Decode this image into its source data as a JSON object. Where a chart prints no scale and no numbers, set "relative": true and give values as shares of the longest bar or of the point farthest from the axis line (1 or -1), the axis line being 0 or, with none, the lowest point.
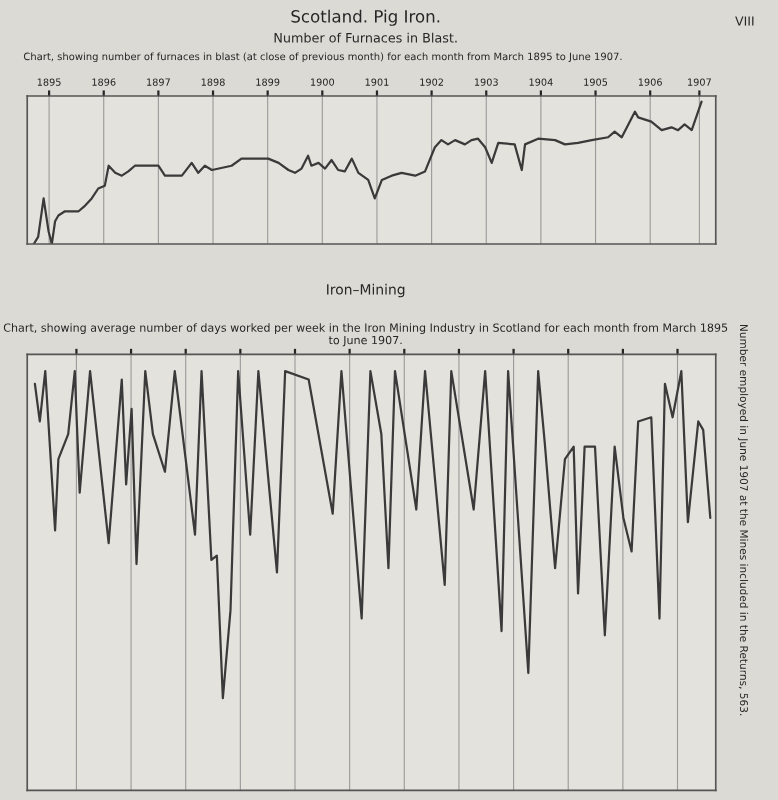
{
  "chart_data": [
    {
      "type": "line",
      "title": "Scotland. Pig Iron.",
      "subtitle": "Number of Furnaces in Blast.",
      "annotations": [
        "VIII",
        "Chart, showing number of furnaces in blast (at close of previous month) for each month from March 1895 to June 1907."
      ],
      "relative": true,
      "grid": "x",
      "xlim": [
        1895.1,
        1907.7
      ],
      "xticks": [
        {
          "value": 1895.5,
          "label": "1895"
        },
        {
          "value": 1896.5,
          "label": "1896"
        },
        {
          "value": 1897.5,
          "label": "1897"
        },
        {
          "value": 1898.5,
          "label": "1898"
        },
        {
          "value": 1899.5,
          "label": "1899"
        },
        {
          "value": 1900.5,
          "label": "1900"
        },
        {
          "value": 1901.5,
          "label": "1901"
        },
        {
          "value": 1902.5,
          "label": "1902"
        },
        {
          "value": 1903.5,
          "label": "1903"
        },
        {
          "value": 1904.5,
          "label": "1904"
        },
        {
          "value": 1905.5,
          "label": "1905"
        },
        {
          "value": 1906.5,
          "label": "1906"
        },
        {
          "value": 1907.4,
          "label": "1907"
        }
      ],
      "tick_labels": "x",
      "series": [
        {
          "color": "#3a3a3a",
          "x": [
            1895.22,
            1895.3,
            1895.4,
            1895.49,
            1895.55,
            1895.61,
            1895.67,
            1895.79,
            1896.04,
            1896.16,
            1896.28,
            1896.4,
            1896.52,
            1896.59,
            1896.71,
            1896.83,
            1896.95,
            1897.07,
            1897.5,
            1897.62,
            1897.93,
            1898.11,
            1898.23,
            1898.35,
            1898.48,
            1898.84,
            1899.02,
            1899.51,
            1899.7,
            1899.88,
            1900.0,
            1900.12,
            1900.24,
            1900.3,
            1900.43,
            1900.55,
            1900.67,
            1900.79,
            1900.91,
            1901.04,
            1901.16,
            1901.34,
            1901.46,
            1901.59,
            1901.77,
            1901.95,
            1902.2,
            1902.38,
            1902.56,
            1902.68,
            1902.8,
            1902.93,
            1903.11,
            1903.23,
            1903.35,
            1903.48,
            1903.6,
            1903.72,
            1904.02,
            1904.15,
            1904.21,
            1904.45,
            1904.76,
            1904.94,
            1905.18,
            1905.43,
            1905.73,
            1905.85,
            1905.98,
            1906.1,
            1906.22,
            1906.28,
            1906.52,
            1906.71,
            1906.89,
            1907.01,
            1907.13,
            1907.26,
            1907.44
          ],
          "values": [
            0,
            0.05,
            0.32,
            0.09,
            0,
            0.16,
            0.2,
            0.23,
            0.23,
            0.27,
            0.32,
            0.39,
            0.41,
            0.55,
            0.5,
            0.48,
            0.51,
            0.55,
            0.55,
            0.48,
            0.48,
            0.57,
            0.5,
            0.55,
            0.52,
            0.55,
            0.6,
            0.6,
            0.57,
            0.52,
            0.5,
            0.53,
            0.62,
            0.55,
            0.57,
            0.53,
            0.59,
            0.52,
            0.51,
            0.6,
            0.5,
            0.45,
            0.32,
            0.45,
            0.48,
            0.5,
            0.48,
            0.51,
            0.68,
            0.73,
            0.7,
            0.73,
            0.7,
            0.73,
            0.74,
            0.68,
            0.57,
            0.71,
            0.7,
            0.52,
            0.7,
            0.74,
            0.73,
            0.7,
            0.71,
            0.73,
            0.75,
            0.79,
            0.75,
            0.84,
            0.93,
            0.89,
            0.86,
            0.8,
            0.82,
            0.8,
            0.84,
            0.8,
            1
          ]
        }
      ]
    },
    {
      "type": "line",
      "title": "Iron–Mining",
      "subtitle": "Chart, showing average number of days worked per week in the Iron Mining Industry in Scotland for each month from March 1895 to June 1907.",
      "annotations": [
        "Number employed in June 1907 at the Mines included in the Returns, 563."
      ],
      "relative": true,
      "grid": "x",
      "xlim": [
        1895.1,
        1907.7
      ],
      "xticks": [
        1896,
        1897,
        1898,
        1899,
        1900,
        1901,
        1902,
        1903,
        1904,
        1905,
        1906,
        1907
      ],
      "tick_labels": false,
      "series": [
        {
          "color": "#3a3a3a",
          "x": [
            1895.24,
            1895.33,
            1895.43,
            1895.61,
            1895.67,
            1895.85,
            1895.97,
            1896.06,
            1896.25,
            1896.59,
            1896.83,
            1896.91,
            1897.01,
            1897.1,
            1897.26,
            1897.4,
            1897.62,
            1897.8,
            1898.17,
            1898.29,
            1898.47,
            1898.57,
            1898.68,
            1898.82,
            1898.96,
            1899.18,
            1899.33,
            1899.67,
            1899.82,
            1900.25,
            1900.69,
            1900.85,
            1901.22,
            1901.38,
            1901.58,
            1901.71,
            1901.83,
            1902.22,
            1902.38,
            1902.74,
            1902.86,
            1903.27,
            1903.48,
            1903.78,
            1903.9,
            1904.27,
            1904.45,
            1904.57,
            1904.76,
            1904.94,
            1905.1,
            1905.18,
            1905.3,
            1905.49,
            1905.67,
            1905.85,
            1906.01,
            1906.16,
            1906.28,
            1906.52,
            1906.67,
            1906.77,
            1906.91,
            1907.07,
            1907.19,
            1907.38,
            1907.47,
            1907.6
          ],
          "values": [
            0.97,
            0.88,
            1.0,
            0.62,
            0.79,
            0.85,
            1.0,
            0.71,
            1.0,
            0.59,
            0.98,
            0.73,
            0.91,
            0.54,
            1.0,
            0.85,
            0.76,
            1.0,
            0.61,
            1.0,
            0.55,
            0.56,
            0.22,
            0.43,
            1.0,
            0.61,
            1.0,
            0.52,
            1.0,
            0.98,
            0.66,
            1.0,
            0.41,
            1.0,
            0.85,
            0.53,
            1.0,
            0.67,
            1.0,
            0.49,
            1.0,
            0.67,
            1.0,
            0.38,
            1.0,
            0.28,
            1.0,
            0.83,
            0.53,
            0.79,
            0.82,
            0.47,
            0.82,
            0.82,
            0.37,
            0.82,
            0.65,
            0.57,
            0.88,
            0.89,
            0.41,
            0.97,
            0.89,
            1.0,
            0.64,
            0.88,
            0.86,
            0.65
          ]
        }
      ]
    }
  ]
}
